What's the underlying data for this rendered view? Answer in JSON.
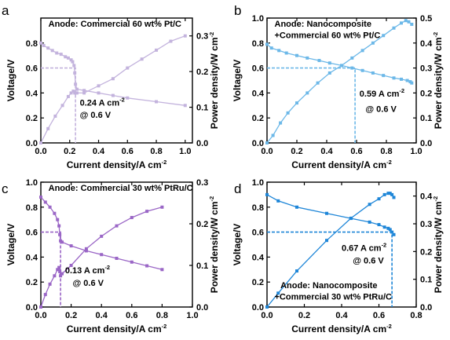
{
  "chart_data": [
    {
      "type": "line",
      "panel_label": "a",
      "title": "Anode: Commercial 60 wt% Pt/C",
      "color": "#c3b3dd",
      "xlabel": "Current density/A cm",
      "xlabel_sup": "-2",
      "ylabel": "Voltage/V",
      "y2label": "Power density/W cm",
      "y2label_sup": "-2",
      "xlim": [
        0,
        1.05
      ],
      "ylim": [
        0,
        1.0
      ],
      "y2lim": [
        0,
        0.35
      ],
      "xticks": [
        0.0,
        0.2,
        0.4,
        0.6,
        0.8,
        1.0
      ],
      "xtick_labels": [
        "0.0",
        "0.2",
        "0.4",
        "0.6",
        "0.8",
        "1.0"
      ],
      "yticks": [
        0.0,
        0.2,
        0.4,
        0.6,
        0.8
      ],
      "ytick_labels": [
        "0.0",
        "0.2",
        "0.4",
        "0.6",
        "0.8"
      ],
      "y2ticks": [
        0.0,
        0.1,
        0.2,
        0.3
      ],
      "y2tick_labels": [
        "0.0",
        "0.1",
        "0.2",
        "0.3"
      ],
      "series": [
        {
          "axis": "left",
          "x": [
            0.0,
            0.02,
            0.05,
            0.08,
            0.11,
            0.14,
            0.17,
            0.19,
            0.21,
            0.22,
            0.23,
            0.235,
            0.24,
            0.25,
            0.3,
            0.4,
            0.5,
            0.6,
            0.8,
            1.0
          ],
          "y": [
            0.8,
            0.78,
            0.76,
            0.74,
            0.72,
            0.71,
            0.69,
            0.68,
            0.665,
            0.65,
            0.62,
            0.56,
            0.47,
            0.43,
            0.42,
            0.4,
            0.38,
            0.36,
            0.33,
            0.3
          ]
        },
        {
          "axis": "right",
          "x": [
            0.0,
            0.05,
            0.1,
            0.15,
            0.19,
            0.21,
            0.225,
            0.235,
            0.24,
            0.25,
            0.3,
            0.4,
            0.5,
            0.6,
            0.7,
            0.8,
            0.9,
            1.0
          ],
          "y": [
            0.0,
            0.04,
            0.075,
            0.105,
            0.13,
            0.14,
            0.145,
            0.14,
            0.14,
            0.14,
            0.14,
            0.16,
            0.18,
            0.21,
            0.235,
            0.26,
            0.285,
            0.3
          ]
        }
      ],
      "ref_x": 0.24,
      "ref_y": 0.6,
      "annotation": "0.24 A cm",
      "annotation_sup": "-2",
      "annotation2": "@ 0.6 V",
      "anno_pos": [
        0.27,
        0.3
      ],
      "anno2_pos": [
        0.27,
        0.2
      ],
      "title_pos": [
        0.05,
        0.93
      ]
    },
    {
      "type": "line",
      "panel_label": "b",
      "title": "Anode: Nanocomposite",
      "title2": "+Commercial 60 wt% Pt/C",
      "color": "#6cb8e8",
      "xlabel": "Current density/A cm",
      "xlabel_sup": "-2",
      "ylabel": "Voltage/V",
      "y2label": "Power density/W cm",
      "y2label_sup": "-2",
      "xlim": [
        0,
        1.0
      ],
      "ylim": [
        0,
        1.0
      ],
      "y2lim": [
        0,
        0.5
      ],
      "xticks": [
        0.0,
        0.2,
        0.4,
        0.6,
        0.8,
        1.0
      ],
      "xtick_labels": [
        "0.0",
        "0.2",
        "0.4",
        "0.6",
        "0.8",
        "1.0"
      ],
      "yticks": [
        0.0,
        0.2,
        0.4,
        0.6,
        0.8,
        1.0
      ],
      "ytick_labels": [
        "0.0",
        "0.2",
        "0.4",
        "0.6",
        "0.8",
        "1.0"
      ],
      "y2ticks": [
        0.0,
        0.1,
        0.2,
        0.3,
        0.4,
        0.5
      ],
      "y2tick_labels": [
        "0.0",
        "0.1",
        "0.2",
        "0.3",
        "0.4",
        "0.5"
      ],
      "series": [
        {
          "axis": "left",
          "x": [
            0.0,
            0.03,
            0.08,
            0.13,
            0.2,
            0.27,
            0.35,
            0.42,
            0.5,
            0.57,
            0.64,
            0.71,
            0.78,
            0.85,
            0.9,
            0.94,
            0.96,
            0.97
          ],
          "y": [
            0.79,
            0.76,
            0.74,
            0.72,
            0.7,
            0.68,
            0.66,
            0.64,
            0.62,
            0.6,
            0.58,
            0.56,
            0.54,
            0.52,
            0.51,
            0.5,
            0.49,
            0.48
          ]
        },
        {
          "axis": "right",
          "x": [
            0.0,
            0.04,
            0.09,
            0.14,
            0.2,
            0.27,
            0.34,
            0.42,
            0.5,
            0.57,
            0.64,
            0.71,
            0.78,
            0.85,
            0.9,
            0.93,
            0.95,
            0.97
          ],
          "y": [
            0.0,
            0.03,
            0.08,
            0.12,
            0.16,
            0.2,
            0.24,
            0.28,
            0.31,
            0.34,
            0.37,
            0.4,
            0.43,
            0.46,
            0.48,
            0.49,
            0.485,
            0.475
          ]
        }
      ],
      "ref_x": 0.59,
      "ref_y": 0.6,
      "annotation": "0.59 A cm",
      "annotation_sup": "-2",
      "annotation2": "@ 0.6 V",
      "anno_pos": [
        0.62,
        0.37
      ],
      "anno2_pos": [
        0.66,
        0.25
      ],
      "title_pos": [
        0.05,
        0.93
      ],
      "title2_pos": [
        0.05,
        0.84
      ]
    },
    {
      "type": "line",
      "panel_label": "c",
      "title": "Anode: Commercial 30 wt% PtRu/C",
      "color": "#9a66c6",
      "xlabel": "Current density/A cm",
      "xlabel_sup": "-2",
      "ylabel": "Voltage/V",
      "y2label": "Power density/W cm",
      "y2label_sup": "-2",
      "xlim": [
        0,
        1.0
      ],
      "ylim": [
        0,
        1.0
      ],
      "y2lim": [
        0,
        0.3
      ],
      "xticks": [
        0.0,
        0.2,
        0.4,
        0.6,
        0.8,
        1.0
      ],
      "xtick_labels": [
        "0.0",
        "0.2",
        "0.4",
        "0.6",
        "0.8",
        "1.0"
      ],
      "yticks": [
        0.0,
        0.2,
        0.4,
        0.6,
        0.8,
        1.0
      ],
      "ytick_labels": [
        "0.0",
        "0.2",
        "0.4",
        "0.6",
        "0.8",
        "1.0"
      ],
      "y2ticks": [
        0.0,
        0.1,
        0.2,
        0.3
      ],
      "y2tick_labels": [
        "0.0",
        "0.1",
        "0.2",
        "0.3"
      ],
      "series": [
        {
          "axis": "left",
          "x": [
            0.0,
            0.03,
            0.06,
            0.09,
            0.11,
            0.12,
            0.125,
            0.13,
            0.14,
            0.2,
            0.3,
            0.4,
            0.5,
            0.6,
            0.7,
            0.8
          ],
          "y": [
            0.88,
            0.84,
            0.8,
            0.75,
            0.7,
            0.65,
            0.58,
            0.53,
            0.52,
            0.49,
            0.45,
            0.42,
            0.39,
            0.36,
            0.33,
            0.3
          ]
        },
        {
          "axis": "right",
          "x": [
            0.0,
            0.03,
            0.06,
            0.09,
            0.11,
            0.12,
            0.125,
            0.13,
            0.14,
            0.2,
            0.3,
            0.4,
            0.5,
            0.6,
            0.7,
            0.8
          ],
          "y": [
            0.0,
            0.03,
            0.055,
            0.075,
            0.09,
            0.095,
            0.085,
            0.075,
            0.08,
            0.1,
            0.14,
            0.17,
            0.195,
            0.215,
            0.23,
            0.24
          ]
        }
      ],
      "ref_x": 0.13,
      "ref_y": 0.6,
      "annotation": "0.13 A cm",
      "annotation_sup": "-2",
      "annotation2": "@ 0.6 V",
      "anno_pos": [
        0.16,
        0.27
      ],
      "anno2_pos": [
        0.21,
        0.17
      ],
      "title_pos": [
        0.05,
        0.93
      ]
    },
    {
      "type": "line",
      "panel_label": "d",
      "title": "Anode: Nanocomposite",
      "title2": "+Commercial 30 wt% PtRu/C",
      "color": "#1e86d8",
      "xlabel": "Current density/A cm",
      "xlabel_sup": "-2",
      "ylabel": "Voltage/V",
      "y2label": "Power density/W cm",
      "y2label_sup": "-2",
      "xlim": [
        0,
        0.8
      ],
      "ylim": [
        0,
        1.0
      ],
      "y2lim": [
        0,
        0.45
      ],
      "xticks": [
        0.0,
        0.2,
        0.4,
        0.6,
        0.8
      ],
      "xtick_labels": [
        "0.0",
        "0.2",
        "0.4",
        "0.6",
        "0.8"
      ],
      "yticks": [
        0.0,
        0.2,
        0.4,
        0.6,
        0.8,
        1.0
      ],
      "ytick_labels": [
        "0.0",
        "0.2",
        "0.4",
        "0.6",
        "0.8",
        "1.0"
      ],
      "y2ticks": [
        0.0,
        0.1,
        0.2,
        0.3,
        0.4
      ],
      "y2tick_labels": [
        "0.0",
        "0.1",
        "0.2",
        "0.3",
        "0.4"
      ],
      "series": [
        {
          "axis": "left",
          "x": [
            0.0,
            0.06,
            0.16,
            0.32,
            0.45,
            0.55,
            0.6,
            0.63,
            0.65,
            0.66,
            0.67,
            0.68
          ],
          "y": [
            0.9,
            0.85,
            0.8,
            0.75,
            0.71,
            0.68,
            0.66,
            0.64,
            0.63,
            0.62,
            0.6,
            0.58
          ]
        },
        {
          "axis": "right",
          "x": [
            0.0,
            0.06,
            0.16,
            0.32,
            0.45,
            0.55,
            0.6,
            0.63,
            0.65,
            0.66,
            0.67,
            0.68
          ],
          "y": [
            0.0,
            0.05,
            0.13,
            0.24,
            0.32,
            0.37,
            0.39,
            0.405,
            0.41,
            0.41,
            0.405,
            0.395
          ]
        }
      ],
      "ref_x": 0.67,
      "ref_y": 0.6,
      "annotation": "0.67 A cm",
      "annotation_sup": "-2",
      "annotation2": "@ 0.6 V",
      "anno_pos": [
        0.4,
        0.45
      ],
      "anno2_pos": [
        0.46,
        0.35
      ],
      "title_pos": [
        0.09,
        0.15
      ],
      "title2_pos": [
        0.05,
        0.06
      ]
    }
  ]
}
